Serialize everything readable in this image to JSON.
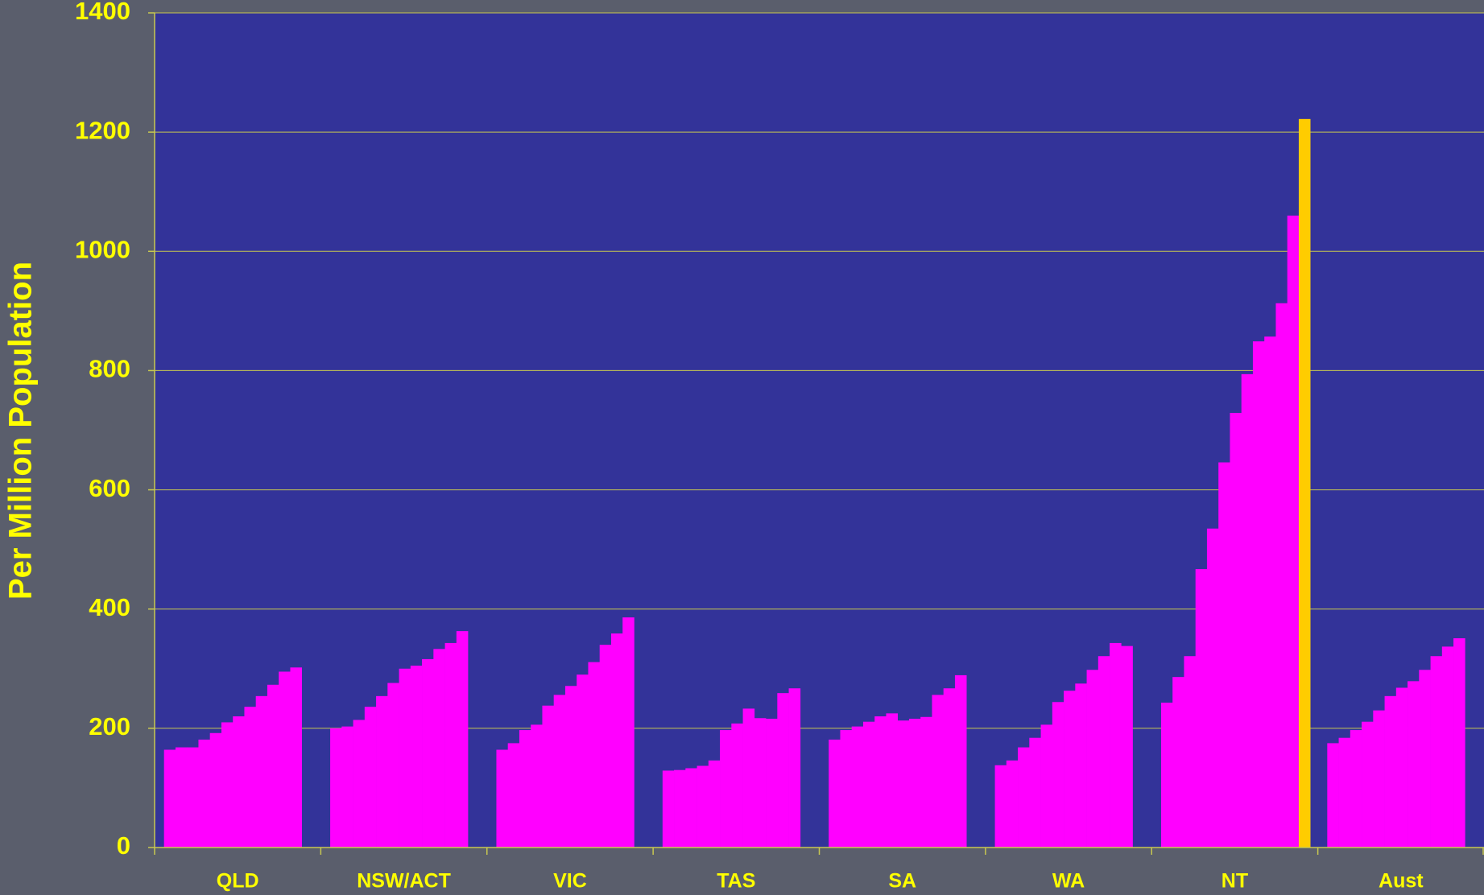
{
  "chart_data": {
    "type": "bar",
    "y_label": "Per Million Population",
    "categories": [
      "QLD",
      "NSW/ACT",
      "VIC",
      "TAS",
      "SA",
      "WA",
      "NT",
      "Aust"
    ],
    "series": [
      {
        "color": "#ff00ff",
        "values": [
          164,
          200,
          164,
          129,
          181,
          138,
          243,
          175
        ]
      },
      {
        "color": "#ff00ff",
        "values": [
          168,
          203,
          175,
          130,
          197,
          146,
          286,
          184
        ]
      },
      {
        "color": "#ff00ff",
        "values": [
          168,
          214,
          197,
          133,
          203,
          168,
          321,
          197
        ]
      },
      {
        "color": "#ff00ff",
        "values": [
          181,
          236,
          206,
          137,
          211,
          184,
          467,
          211
        ]
      },
      {
        "color": "#ff00ff",
        "values": [
          192,
          254,
          238,
          146,
          220,
          206,
          535,
          230
        ]
      },
      {
        "color": "#ff00ff",
        "values": [
          210,
          276,
          256,
          197,
          225,
          244,
          646,
          254
        ]
      },
      {
        "color": "#ff00ff",
        "values": [
          220,
          300,
          271,
          208,
          213,
          263,
          729,
          268
        ]
      },
      {
        "color": "#ff00ff",
        "values": [
          236,
          305,
          290,
          233,
          216,
          275,
          794,
          279
        ]
      },
      {
        "color": "#ff00ff",
        "values": [
          254,
          316,
          311,
          217,
          219,
          298,
          849,
          298
        ]
      },
      {
        "color": "#ff00ff",
        "values": [
          273,
          333,
          340,
          216,
          256,
          321,
          857,
          321
        ]
      },
      {
        "color": "#ff00ff",
        "values": [
          295,
          343,
          359,
          259,
          267,
          343,
          913,
          337
        ]
      },
      {
        "color": "#ff00ff",
        "values": [
          302,
          363,
          386,
          267,
          289,
          338,
          1060,
          351
        ]
      },
      {
        "color": "#ffcc00",
        "values": [
          null,
          null,
          null,
          null,
          null,
          null,
          1222,
          null
        ]
      }
    ],
    "ylim": [
      0,
      1400
    ],
    "yticks": [
      0,
      200,
      400,
      600,
      800,
      1000,
      1200,
      1400
    ],
    "grid": true
  }
}
